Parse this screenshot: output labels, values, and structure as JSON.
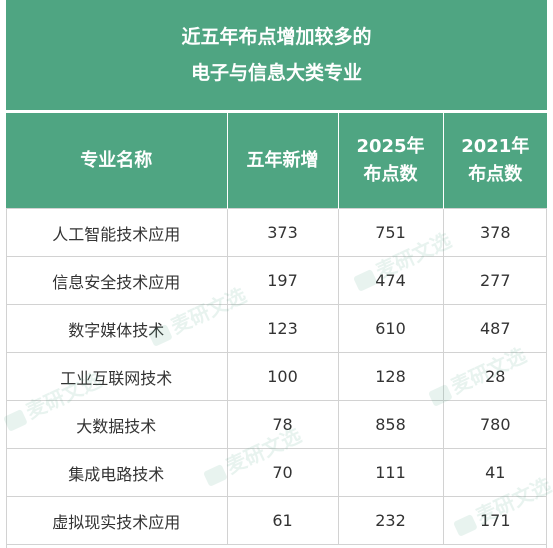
{
  "title": {
    "line1": "近五年布点增加较多的",
    "line2": "电子与信息大类专业"
  },
  "headers": {
    "name": "专业名称",
    "added": "五年新增",
    "y2025_line1": "2025年",
    "y2025_line2": "布点数",
    "y2021_line1": "2021年",
    "y2021_line2": "布点数"
  },
  "rows": [
    {
      "name": "人工智能技术应用",
      "added": "373",
      "y2025": "751",
      "y2021": "378"
    },
    {
      "name": "信息安全技术应用",
      "added": "197",
      "y2025": "474",
      "y2021": "277"
    },
    {
      "name": "数字媒体技术",
      "added": "123",
      "y2025": "610",
      "y2021": "487"
    },
    {
      "name": "工业互联网技术",
      "added": "100",
      "y2025": "128",
      "y2021": "28"
    },
    {
      "name": "大数据技术",
      "added": "78",
      "y2025": "858",
      "y2021": "780"
    },
    {
      "name": "集成电路技术",
      "added": "70",
      "y2025": "111",
      "y2021": "41"
    },
    {
      "name": "虚拟现实技术应用",
      "added": "61",
      "y2025": "232",
      "y2021": "171"
    }
  ],
  "watermark": "麦研文选",
  "colors": {
    "header_bg": "#4fa582",
    "header_text": "#ffffff",
    "grid": "#d2d2d2",
    "cell_text": "#333333"
  }
}
